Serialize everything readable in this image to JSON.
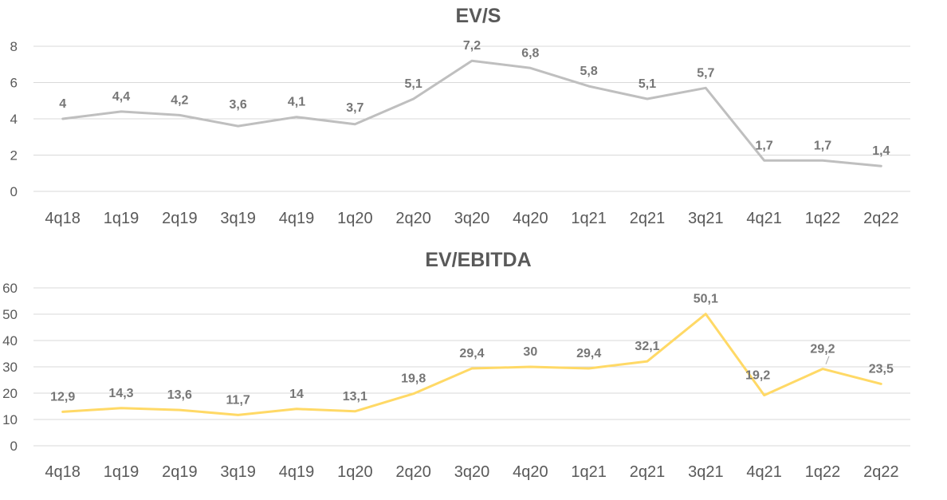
{
  "chart_data": [
    {
      "type": "line",
      "title": "EV/S",
      "categories": [
        "4q18",
        "1q19",
        "2q19",
        "3q19",
        "4q19",
        "1q20",
        "2q20",
        "3q20",
        "4q20",
        "1q21",
        "2q21",
        "3q21",
        "4q21",
        "1q22",
        "2q22"
      ],
      "values": [
        4,
        4.4,
        4.2,
        3.6,
        4.1,
        3.7,
        5.1,
        7.2,
        6.8,
        5.8,
        5.1,
        5.7,
        1.7,
        1.7,
        1.4
      ],
      "data_labels": [
        "4",
        "4,4",
        "4,2",
        "3,6",
        "4,1",
        "3,7",
        "5,1",
        "7,2",
        "6,8",
        "5,8",
        "5,1",
        "5,7",
        "1,7",
        "1,7",
        "1,4"
      ],
      "yticks": [
        0,
        2,
        4,
        6,
        8
      ],
      "ylim": [
        0,
        8
      ],
      "grid": true,
      "color": "#bfbfbf"
    },
    {
      "type": "line",
      "title": "EV/EBITDA",
      "categories": [
        "4q18",
        "1q19",
        "2q19",
        "3q19",
        "4q19",
        "1q20",
        "2q20",
        "3q20",
        "4q20",
        "1q21",
        "2q21",
        "3q21",
        "4q21",
        "1q22",
        "2q22"
      ],
      "values": [
        12.9,
        14.3,
        13.6,
        11.7,
        14,
        13.1,
        19.8,
        29.4,
        30,
        29.4,
        32.1,
        50.1,
        19.2,
        29.2,
        23.5
      ],
      "data_labels": [
        "12,9",
        "14,3",
        "13,6",
        "11,7",
        "14",
        "13,1",
        "19,8",
        "29,4",
        "30",
        "29,4",
        "32,1",
        "50,1",
        "19,2",
        "29,2",
        "23,5"
      ],
      "yticks": [
        0,
        10,
        20,
        30,
        40,
        50,
        60
      ],
      "ylim": [
        0,
        60
      ],
      "grid": true,
      "color": "#ffd966"
    }
  ]
}
